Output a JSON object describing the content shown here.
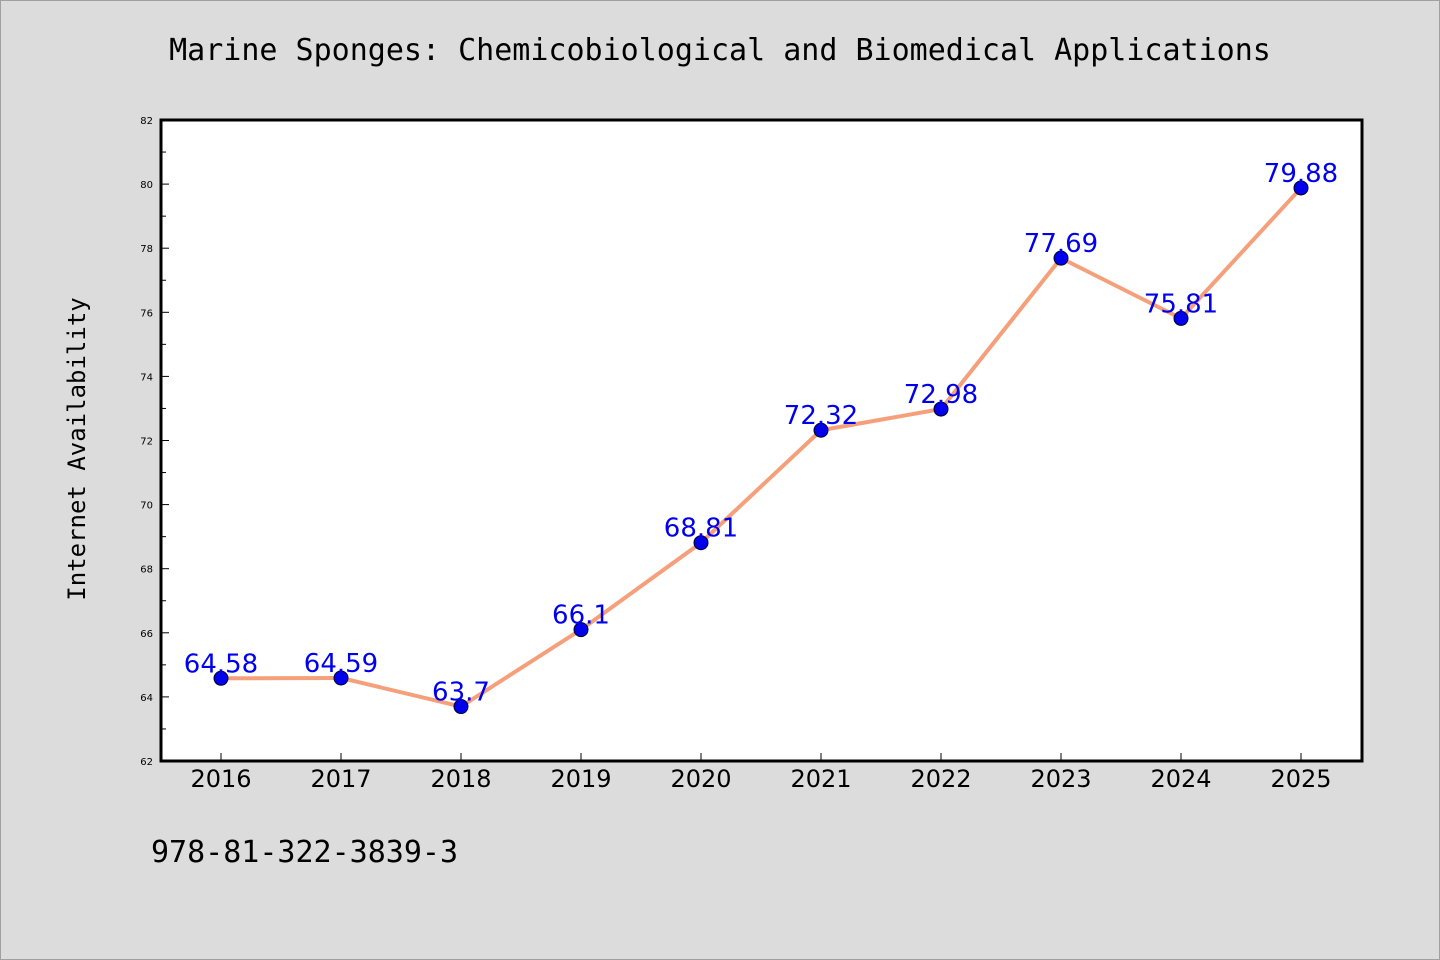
{
  "chart_data": {
    "type": "line",
    "title": "Marine Sponges: Chemicobiological and Biomedical Applications",
    "xlabel": "",
    "ylabel": "Internet Availability",
    "categories": [
      "2016",
      "2017",
      "2018",
      "2019",
      "2020",
      "2021",
      "2022",
      "2023",
      "2024",
      "2025"
    ],
    "series": [
      {
        "values": [
          64.58,
          64.59,
          63.7,
          66.1,
          68.81,
          72.32,
          72.98,
          77.69,
          75.81,
          79.88
        ],
        "data_labels": [
          "64.58",
          "64.59",
          "63.7",
          "66.1",
          "68.81",
          "72.32",
          "72.98",
          "77.69",
          "75.81",
          "79.88"
        ],
        "line_color": "#f5a07a",
        "marker_color": "#0000ee",
        "label_color": "#0000ee"
      }
    ],
    "ylim": [
      62,
      82
    ],
    "y_ticks": [
      "62",
      "64",
      "66",
      "68",
      "70",
      "72",
      "74",
      "76",
      "78",
      "80",
      "82"
    ],
    "grid": false,
    "legend": "none"
  },
  "footer": {
    "code": "978-81-322-3839-3"
  }
}
